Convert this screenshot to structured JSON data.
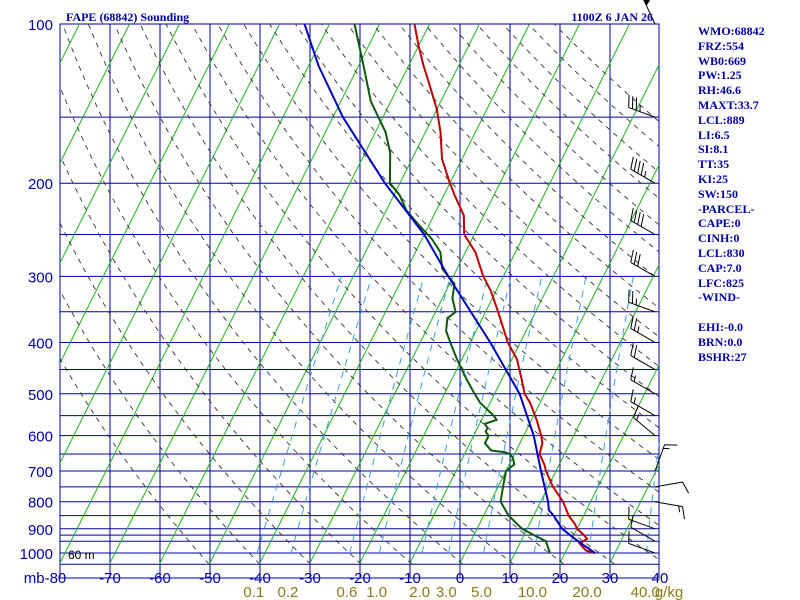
{
  "header": {
    "title": "FAPE (68842) Sounding",
    "time": "1100Z  6 JAN 26"
  },
  "indices": [
    "WMO:68842",
    "FRZ:554",
    "WB0:669",
    "PW:1.25",
    "RH:46.6",
    "MAXT:33.7",
    "LCL:889",
    "LI:6.5",
    "SI:8.1",
    "TT:35",
    "KI:25",
    "SW:150",
    "-PARCEL-",
    "CAPE:0",
    "CINH:0",
    "LCL:830",
    "CAP:7.0",
    "LFC:825",
    "-WIND-",
    "",
    "EHI:-0.0",
    "BRN:0.0",
    "BSHR:27"
  ],
  "chart_data": {
    "type": "skew-t log-p sounding",
    "title": "FAPE (68842) Sounding",
    "ylabel": "mb",
    "ylim": [
      1050,
      100
    ],
    "xlim": [
      -80,
      40
    ],
    "pressure_ticks": [
      100,
      200,
      300,
      400,
      500,
      600,
      700,
      800,
      900,
      1000
    ],
    "pressure_levels": [
      100,
      150,
      200,
      250,
      300,
      350,
      400,
      450,
      500,
      550,
      600,
      650,
      700,
      750,
      800,
      850,
      900,
      925,
      950,
      1000,
      1050
    ],
    "temperature_ticks": [
      -80,
      -70,
      -60,
      -50,
      -40,
      -30,
      -20,
      -10,
      0,
      10,
      20,
      30,
      40
    ],
    "temperature_tick_labels": [
      "mb-80",
      "-70",
      "-60",
      "-50",
      "-40",
      "-30",
      "-20",
      "-10",
      "0",
      "10",
      "20",
      "30",
      "40"
    ],
    "mixing_ratio_ticks": [
      0.1,
      0.2,
      0.6,
      1.0,
      2.0,
      3.0,
      5.0,
      10.0,
      20.0,
      40.0
    ],
    "mixing_ratio_labels": [
      "0.1",
      "0.2",
      "0.6",
      "1.0",
      "2.0",
      "3.0",
      "5.0",
      "10.0",
      "20.0",
      "40.0"
    ],
    "mixing_ratio_unit": "g/kg",
    "height_label": "60 m",
    "series": [
      {
        "name": "Temperature",
        "color": "#c00000",
        "points": [
          [
            1000,
            26
          ],
          [
            990,
            24
          ],
          [
            975,
            23
          ],
          [
            960,
            22
          ],
          [
            940,
            23
          ],
          [
            925,
            22
          ],
          [
            900,
            20
          ],
          [
            880,
            19
          ],
          [
            850,
            17
          ],
          [
            800,
            14.5
          ],
          [
            750,
            11
          ],
          [
            700,
            8
          ],
          [
            680,
            7
          ],
          [
            650,
            5
          ],
          [
            620,
            4.5
          ],
          [
            600,
            3.5
          ],
          [
            560,
            1
          ],
          [
            520,
            -2
          ],
          [
            500,
            -4
          ],
          [
            470,
            -6
          ],
          [
            430,
            -9
          ],
          [
            400,
            -12.5
          ],
          [
            350,
            -17.5
          ],
          [
            320,
            -21
          ],
          [
            300,
            -24
          ],
          [
            270,
            -28
          ],
          [
            250,
            -32
          ],
          [
            230,
            -34
          ],
          [
            210,
            -38
          ],
          [
            200,
            -40
          ],
          [
            180,
            -44
          ],
          [
            160,
            -47
          ],
          [
            145,
            -50
          ],
          [
            130,
            -54
          ],
          [
            120,
            -57
          ],
          [
            110,
            -60
          ],
          [
            100,
            -63
          ]
        ]
      },
      {
        "name": "Dewpoint",
        "color": "#0a5a0a",
        "points": [
          [
            1000,
            17
          ],
          [
            975,
            16
          ],
          [
            950,
            15
          ],
          [
            925,
            12
          ],
          [
            900,
            9
          ],
          [
            850,
            5
          ],
          [
            800,
            2
          ],
          [
            750,
            1
          ],
          [
            700,
            0
          ],
          [
            680,
            1
          ],
          [
            660,
            0
          ],
          [
            650,
            -1
          ],
          [
            645,
            -2
          ],
          [
            640,
            -5
          ],
          [
            630,
            -6
          ],
          [
            620,
            -7
          ],
          [
            610,
            -7
          ],
          [
            600,
            -7
          ],
          [
            590,
            -8
          ],
          [
            580,
            -8
          ],
          [
            570,
            -9
          ],
          [
            560,
            -7
          ],
          [
            550,
            -8
          ],
          [
            520,
            -12
          ],
          [
            500,
            -14
          ],
          [
            470,
            -17
          ],
          [
            430,
            -21
          ],
          [
            400,
            -24
          ],
          [
            380,
            -26
          ],
          [
            360,
            -27
          ],
          [
            350,
            -26
          ],
          [
            330,
            -28
          ],
          [
            310,
            -29
          ],
          [
            300,
            -31
          ],
          [
            290,
            -33
          ],
          [
            270,
            -35
          ],
          [
            255,
            -38
          ],
          [
            240,
            -42
          ],
          [
            225,
            -46
          ],
          [
            210,
            -49
          ],
          [
            200,
            -52
          ],
          [
            175,
            -55
          ],
          [
            160,
            -58
          ],
          [
            140,
            -64
          ],
          [
            120,
            -69
          ],
          [
            100,
            -75
          ]
        ]
      },
      {
        "name": "Parcel",
        "color": "#0000c0",
        "points": [
          [
            1000,
            26
          ],
          [
            950,
            21.4
          ],
          [
            900,
            17
          ],
          [
            850,
            14
          ],
          [
            830,
            12.5
          ],
          [
            800,
            11.5
          ],
          [
            700,
            7
          ],
          [
            600,
            2
          ],
          [
            500,
            -5
          ],
          [
            400,
            -16
          ],
          [
            300,
            -31
          ],
          [
            250,
            -40
          ],
          [
            200,
            -53
          ],
          [
            150,
            -68
          ],
          [
            120,
            -78
          ],
          [
            100,
            -85
          ]
        ]
      }
    ],
    "wind_barbs": [
      {
        "p": 100,
        "dir": 335,
        "kt": 50
      },
      {
        "p": 150,
        "dir": 290,
        "kt": 35
      },
      {
        "p": 200,
        "dir": 300,
        "kt": 45
      },
      {
        "p": 250,
        "dir": 300,
        "kt": 40
      },
      {
        "p": 300,
        "dir": 300,
        "kt": 30
      },
      {
        "p": 350,
        "dir": 290,
        "kt": 25
      },
      {
        "p": 400,
        "dir": 300,
        "kt": 25
      },
      {
        "p": 450,
        "dir": 300,
        "kt": 20
      },
      {
        "p": 500,
        "dir": 300,
        "kt": 15
      },
      {
        "p": 550,
        "dir": 300,
        "kt": 15
      },
      {
        "p": 600,
        "dir": 310,
        "kt": 15
      },
      {
        "p": 700,
        "dir": 20,
        "kt": 15
      },
      {
        "p": 750,
        "dir": 80,
        "kt": 10
      },
      {
        "p": 800,
        "dir": 100,
        "kt": 15
      },
      {
        "p": 900,
        "dir": 290,
        "kt": 10
      },
      {
        "p": 950,
        "dir": 300,
        "kt": 10
      },
      {
        "p": 1000,
        "dir": 290,
        "kt": 10
      }
    ]
  }
}
